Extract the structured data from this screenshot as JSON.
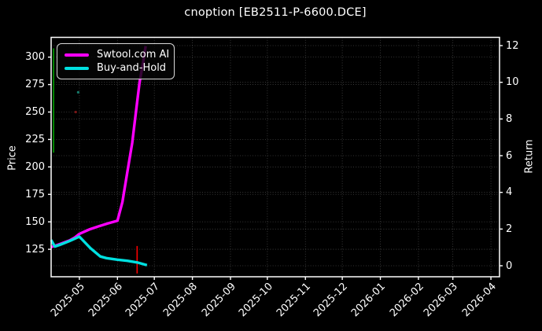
{
  "figure": {
    "background_color": "#000000",
    "text_color": "#ffffff",
    "grid_color": "#9a9a9a"
  },
  "chart_data": {
    "type": "line",
    "title": "cnoption [EB2511-P-6600.DCE]",
    "grid": true,
    "legend_position": "upper left",
    "x_domain": {
      "start": "2025-04-08",
      "end": "2026-04-08"
    },
    "x_ticks": [
      {
        "date": "2025-05-01",
        "label": "2025-05"
      },
      {
        "date": "2025-06-01",
        "label": "2025-06"
      },
      {
        "date": "2025-07-01",
        "label": "2025-07"
      },
      {
        "date": "2025-08-01",
        "label": "2025-08"
      },
      {
        "date": "2025-09-01",
        "label": "2025-09"
      },
      {
        "date": "2025-10-01",
        "label": "2025-10"
      },
      {
        "date": "2025-11-01",
        "label": "2025-11"
      },
      {
        "date": "2025-12-01",
        "label": "2025-12"
      },
      {
        "date": "2026-01-01",
        "label": "2026-01"
      },
      {
        "date": "2026-02-01",
        "label": "2026-02"
      },
      {
        "date": "2026-03-01",
        "label": "2026-03"
      },
      {
        "date": "2026-04-01",
        "label": "2026-04"
      }
    ],
    "left_axis": {
      "label": "Price",
      "ticks": [
        125,
        150,
        175,
        200,
        225,
        250,
        275,
        300
      ],
      "range": [
        100,
        318
      ]
    },
    "right_axis": {
      "label": "Return",
      "ticks": [
        0,
        2,
        4,
        6,
        8,
        10,
        12
      ],
      "range": [
        -0.6,
        12.45
      ]
    },
    "series": [
      {
        "name": "Swtool.com AI",
        "color": "#ff00ff",
        "axis": "left",
        "points": [
          [
            "2025-04-08",
            127
          ],
          [
            "2025-04-12",
            128.5
          ],
          [
            "2025-04-17",
            130.5
          ],
          [
            "2025-04-23",
            133
          ],
          [
            "2025-04-27",
            135.5
          ],
          [
            "2025-05-01",
            139
          ],
          [
            "2025-05-05",
            141
          ],
          [
            "2025-05-09",
            143
          ],
          [
            "2025-05-17",
            146
          ],
          [
            "2025-05-24",
            148.5
          ],
          [
            "2025-06-01",
            151
          ],
          [
            "2025-06-05",
            168
          ],
          [
            "2025-06-09",
            195
          ],
          [
            "2025-06-13",
            222
          ],
          [
            "2025-06-16",
            250
          ],
          [
            "2025-06-19",
            277
          ],
          [
            "2025-06-22",
            296
          ],
          [
            "2025-06-24",
            310
          ]
        ]
      },
      {
        "name": "Buy-and-Hold",
        "color": "#00e0e0",
        "axis": "left",
        "points": [
          [
            "2025-04-08",
            133.5
          ],
          [
            "2025-04-11",
            127.5
          ],
          [
            "2025-04-15",
            129
          ],
          [
            "2025-04-23",
            132.5
          ],
          [
            "2025-05-01",
            136.5
          ],
          [
            "2025-05-10",
            126
          ],
          [
            "2025-05-18",
            118.5
          ],
          [
            "2025-05-23",
            117
          ],
          [
            "2025-06-01",
            115.5
          ],
          [
            "2025-06-09",
            114.5
          ],
          [
            "2025-06-17",
            113
          ],
          [
            "2025-06-25",
            110.5
          ]
        ]
      }
    ],
    "event_lines": [
      {
        "name": "entry-signal-line",
        "color": "#00a000",
        "date": "2025-04-10",
        "price_min": 213,
        "price_max": 308
      },
      {
        "name": "exit-signal-line",
        "color": "#ff0000",
        "date": "2025-06-17",
        "price_min": 103,
        "price_max": 128
      }
    ],
    "point_markers": [
      {
        "date": "2025-04-28",
        "price": 250,
        "color": "#7a1515"
      },
      {
        "date": "2025-04-30",
        "price": 268,
        "color": "#157a6a"
      }
    ]
  }
}
